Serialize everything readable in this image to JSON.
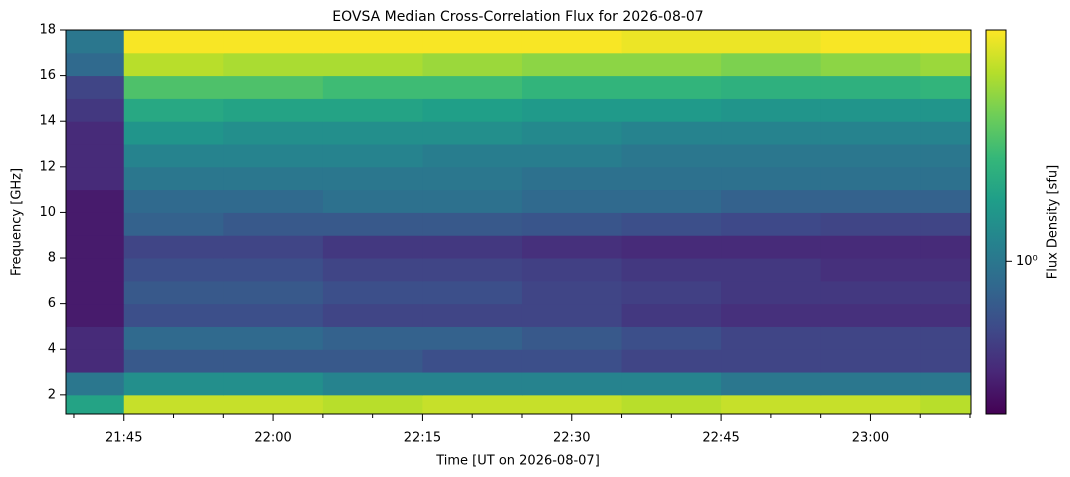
{
  "chart_data": {
    "type": "heatmap",
    "title": "EOVSA Median Cross-Correlation Flux for 2026-08-07",
    "x_label": "Time [UT on 2026-08-07]",
    "y_label": "Frequency [GHz]",
    "colorbar_label": "Flux Density [sfu]",
    "colormap": "viridis",
    "color_scale": "log",
    "x_bins": [
      1299.2,
      1305,
      1315,
      1325,
      1335,
      1345,
      1355,
      1365,
      1375,
      1385,
      1390.1
    ],
    "y_bins": [
      1.16,
      2,
      3,
      4,
      5,
      6,
      7,
      8,
      9,
      10,
      11,
      12,
      13,
      14,
      15,
      16,
      17,
      18
    ],
    "z": [
      [
        1.4,
        2.6,
        2.6,
        2.5,
        2.6,
        2.6,
        2.5,
        2.6,
        2.6,
        2.5
      ],
      [
        1.0,
        1.2,
        1.2,
        1.1,
        1.1,
        1.1,
        1.1,
        1.0,
        1.0,
        1.0
      ],
      [
        0.6,
        0.8,
        0.8,
        0.8,
        0.75,
        0.75,
        0.7,
        0.7,
        0.7,
        0.7
      ],
      [
        0.6,
        0.9,
        0.9,
        0.85,
        0.85,
        0.8,
        0.75,
        0.7,
        0.7,
        0.7
      ],
      [
        0.55,
        0.75,
        0.75,
        0.7,
        0.7,
        0.7,
        0.65,
        0.62,
        0.62,
        0.62
      ],
      [
        0.55,
        0.8,
        0.8,
        0.75,
        0.75,
        0.7,
        0.68,
        0.65,
        0.65,
        0.65
      ],
      [
        0.55,
        0.75,
        0.75,
        0.7,
        0.7,
        0.68,
        0.65,
        0.65,
        0.62,
        0.62
      ],
      [
        0.55,
        0.7,
        0.7,
        0.65,
        0.65,
        0.62,
        0.6,
        0.6,
        0.6,
        0.6
      ],
      [
        0.55,
        0.85,
        0.8,
        0.8,
        0.8,
        0.78,
        0.75,
        0.72,
        0.7,
        0.7
      ],
      [
        0.55,
        0.9,
        0.9,
        0.95,
        0.95,
        0.9,
        0.9,
        0.85,
        0.85,
        0.85
      ],
      [
        0.6,
        1.0,
        1.0,
        1.0,
        1.0,
        0.95,
        0.95,
        0.95,
        0.95,
        0.95
      ],
      [
        0.6,
        1.1,
        1.1,
        1.1,
        1.05,
        1.05,
        1.0,
        1.0,
        1.0,
        1.0
      ],
      [
        0.6,
        1.25,
        1.2,
        1.2,
        1.2,
        1.15,
        1.1,
        1.1,
        1.1,
        1.1
      ],
      [
        0.65,
        1.45,
        1.4,
        1.4,
        1.35,
        1.3,
        1.3,
        1.25,
        1.25,
        1.25
      ],
      [
        0.7,
        1.8,
        1.8,
        1.7,
        1.7,
        1.6,
        1.6,
        1.55,
        1.55,
        1.6
      ],
      [
        0.9,
        2.5,
        2.4,
        2.4,
        2.3,
        2.2,
        2.2,
        2.1,
        2.2,
        2.3
      ],
      [
        1.0,
        3.0,
        3.0,
        3.0,
        3.0,
        3.0,
        2.9,
        2.9,
        3.0,
        3.0
      ]
    ],
    "xlim": [
      1299.2,
      1390.1
    ],
    "ylim": [
      1.16,
      18
    ],
    "xticks": [
      {
        "value": 1305,
        "label": "21:45"
      },
      {
        "value": 1320,
        "label": "22:00"
      },
      {
        "value": 1335,
        "label": "22:15"
      },
      {
        "value": 1350,
        "label": "22:30"
      },
      {
        "value": 1365,
        "label": "22:45"
      },
      {
        "value": 1380,
        "label": "23:00"
      }
    ],
    "minor_xticks": [
      1300,
      1310,
      1315,
      1325,
      1330,
      1340,
      1345,
      1355,
      1360,
      1370,
      1375,
      1385,
      1390
    ],
    "yticks": [
      2,
      4,
      6,
      8,
      10,
      12,
      14,
      16,
      18
    ],
    "clim": [
      0.48,
      3.04
    ],
    "cticks": [
      {
        "value": 1,
        "label": "10⁰"
      }
    ]
  }
}
